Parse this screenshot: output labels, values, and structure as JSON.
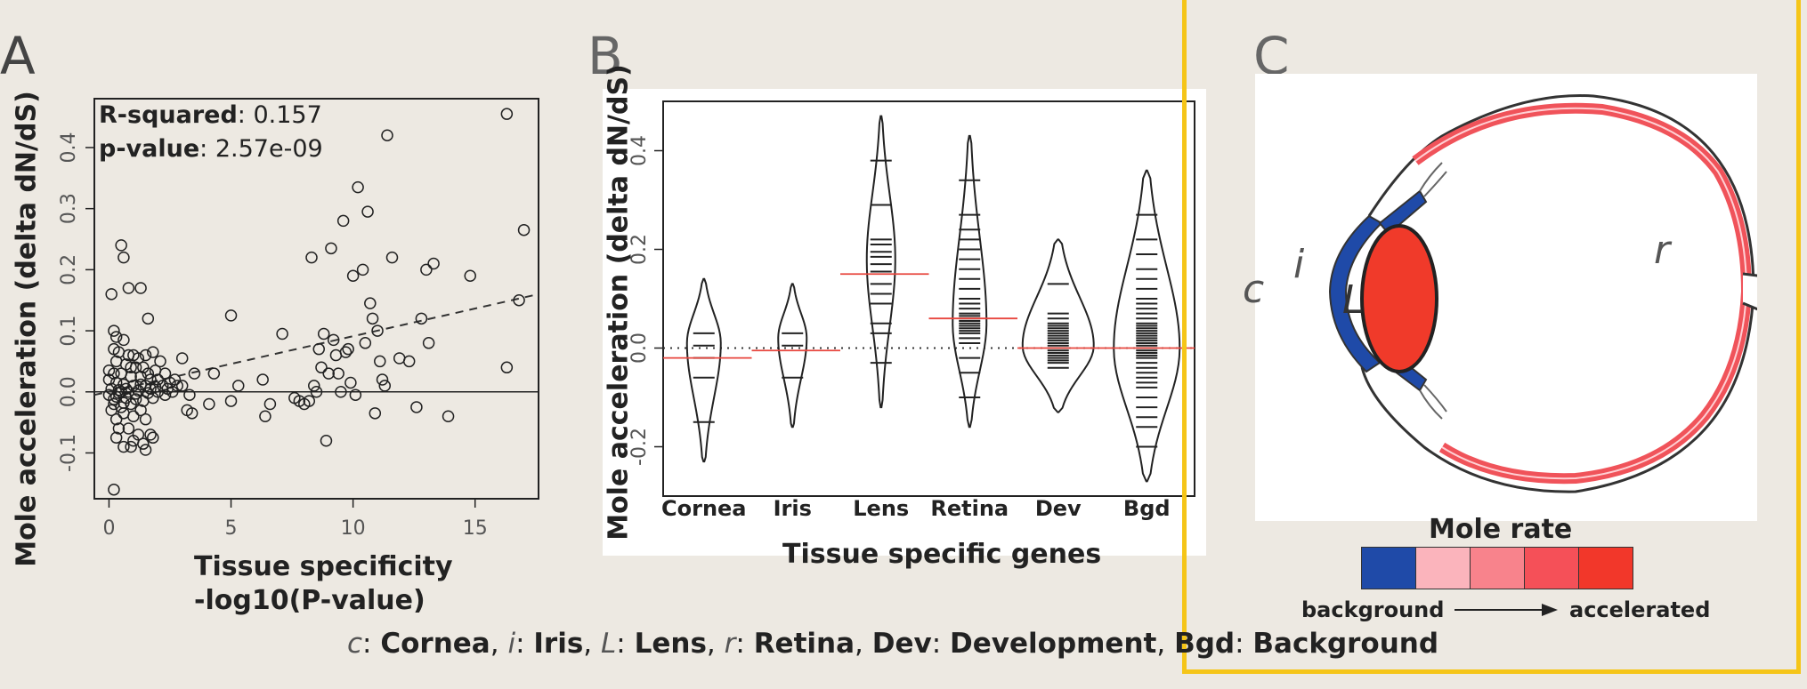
{
  "panels": {
    "a_letter": "A",
    "b_letter": "B",
    "c_letter": "C"
  },
  "chart_data": [
    {
      "type": "scatter",
      "panel": "A",
      "xlabel_line1": "Tissue specificity",
      "xlabel_line2": "-log10(P-value)",
      "ylabel": "Mole acceleration (delta dN/dS)",
      "xlim": [
        -0.6,
        17.6
      ],
      "ylim": [
        -0.175,
        0.48
      ],
      "x_ticks": [
        0,
        5,
        10,
        15
      ],
      "y_ticks": [
        -0.1,
        0.0,
        0.1,
        0.2,
        0.3,
        0.4
      ],
      "y_tick_labels": [
        "-0.1",
        "0.0",
        "0.1",
        "0.2",
        "0.3",
        "0.4"
      ],
      "stats": {
        "r2_label": "R-squared",
        "r2_value": "0.157",
        "p_label": "p-value",
        "p_value": "2.57e-09"
      },
      "reference_line_y": 0,
      "trend_line": {
        "x": [
          -0.6,
          17.6
        ],
        "y": [
          -0.005,
          0.16
        ],
        "style": "dashed"
      },
      "points": [
        [
          0.1,
          0.16
        ],
        [
          0.5,
          0.24
        ],
        [
          0.6,
          0.22
        ],
        [
          0.8,
          0.17
        ],
        [
          1.3,
          0.17
        ],
        [
          1.6,
          0.12
        ],
        [
          0.2,
          0.1
        ],
        [
          0.3,
          0.09
        ],
        [
          0.6,
          0.085
        ],
        [
          0.2,
          0.07
        ],
        [
          0.4,
          0.065
        ],
        [
          0.8,
          0.06
        ],
        [
          1.0,
          0.06
        ],
        [
          1.2,
          0.055
        ],
        [
          1.5,
          0.06
        ],
        [
          1.8,
          0.065
        ],
        [
          2.1,
          0.05
        ],
        [
          0.3,
          0.05
        ],
        [
          0.7,
          0.045
        ],
        [
          1.1,
          0.04
        ],
        [
          1.4,
          0.04
        ],
        [
          1.9,
          0.035
        ],
        [
          2.3,
          0.03
        ],
        [
          0.2,
          0.03
        ],
        [
          0.5,
          0.03
        ],
        [
          0.9,
          0.025
        ],
        [
          1.3,
          0.025
        ],
        [
          1.7,
          0.02
        ],
        [
          2.0,
          0.02
        ],
        [
          2.5,
          0.015
        ],
        [
          0.0,
          0.02
        ],
        [
          0.3,
          0.015
        ],
        [
          0.6,
          0.012
        ],
        [
          1.0,
          0.01
        ],
        [
          1.5,
          0.01
        ],
        [
          1.9,
          0.008
        ],
        [
          2.4,
          0.005
        ],
        [
          2.8,
          0.01
        ],
        [
          0.1,
          0.005
        ],
        [
          0.4,
          0.003
        ],
        [
          0.8,
          0.0
        ],
        [
          1.2,
          0.002
        ],
        [
          1.6,
          -0.002
        ],
        [
          2.0,
          0.0
        ],
        [
          2.3,
          -0.005
        ],
        [
          0.0,
          -0.005
        ],
        [
          0.3,
          -0.008
        ],
        [
          0.7,
          -0.01
        ],
        [
          1.1,
          -0.012
        ],
        [
          1.4,
          -0.015
        ],
        [
          1.8,
          -0.01
        ],
        [
          0.2,
          -0.02
        ],
        [
          0.5,
          -0.025
        ],
        [
          0.9,
          -0.02
        ],
        [
          1.3,
          -0.03
        ],
        [
          0.1,
          -0.03
        ],
        [
          0.6,
          -0.035
        ],
        [
          1.0,
          -0.04
        ],
        [
          0.3,
          -0.045
        ],
        [
          1.5,
          -0.045
        ],
        [
          0.4,
          -0.06
        ],
        [
          0.8,
          -0.06
        ],
        [
          1.2,
          -0.07
        ],
        [
          1.7,
          -0.07
        ],
        [
          0.3,
          -0.075
        ],
        [
          0.6,
          -0.09
        ],
        [
          1.0,
          -0.08
        ],
        [
          1.4,
          -0.085
        ],
        [
          1.5,
          -0.095
        ],
        [
          1.8,
          -0.075
        ],
        [
          0.2,
          -0.16
        ],
        [
          0.9,
          -0.09
        ],
        [
          0.5,
          0.0
        ],
        [
          1.7,
          0.005
        ],
        [
          2.6,
          0.0
        ],
        [
          3.0,
          0.01
        ],
        [
          3.3,
          -0.005
        ],
        [
          2.2,
          0.01
        ],
        [
          3.5,
          0.03
        ],
        [
          4.3,
          0.03
        ],
        [
          3.0,
          0.055
        ],
        [
          3.2,
          -0.03
        ],
        [
          3.4,
          -0.035
        ],
        [
          4.1,
          -0.02
        ],
        [
          5.0,
          0.125
        ],
        [
          5.0,
          -0.015
        ],
        [
          5.3,
          0.01
        ],
        [
          6.3,
          0.02
        ],
        [
          6.4,
          -0.04
        ],
        [
          6.6,
          -0.02
        ],
        [
          7.1,
          0.095
        ],
        [
          7.6,
          -0.01
        ],
        [
          7.8,
          -0.015
        ],
        [
          8.0,
          -0.02
        ],
        [
          8.2,
          -0.015
        ],
        [
          8.3,
          0.22
        ],
        [
          8.4,
          0.01
        ],
        [
          8.5,
          0.0
        ],
        [
          8.6,
          0.07
        ],
        [
          8.7,
          0.04
        ],
        [
          8.8,
          0.095
        ],
        [
          8.9,
          -0.08
        ],
        [
          9.0,
          0.03
        ],
        [
          9.1,
          0.235
        ],
        [
          9.2,
          0.085
        ],
        [
          9.3,
          0.06
        ],
        [
          9.4,
          0.03
        ],
        [
          9.5,
          0.0
        ],
        [
          9.6,
          0.28
        ],
        [
          9.7,
          0.065
        ],
        [
          9.8,
          0.07
        ],
        [
          9.9,
          0.015
        ],
        [
          10.0,
          0.19
        ],
        [
          10.1,
          -0.005
        ],
        [
          10.2,
          0.335
        ],
        [
          10.4,
          0.2
        ],
        [
          10.5,
          0.08
        ],
        [
          10.6,
          0.295
        ],
        [
          10.7,
          0.145
        ],
        [
          10.8,
          0.12
        ],
        [
          10.9,
          -0.035
        ],
        [
          11.0,
          0.1
        ],
        [
          11.1,
          0.05
        ],
        [
          11.2,
          0.02
        ],
        [
          11.3,
          0.01
        ],
        [
          11.4,
          0.42
        ],
        [
          11.6,
          0.22
        ],
        [
          11.9,
          0.055
        ],
        [
          12.6,
          -0.025
        ],
        [
          12.8,
          0.12
        ],
        [
          13.0,
          0.2
        ],
        [
          13.3,
          0.21
        ],
        [
          13.9,
          -0.04
        ],
        [
          14.8,
          0.19
        ],
        [
          13.1,
          0.08
        ],
        [
          16.3,
          0.455
        ],
        [
          16.3,
          0.04
        ],
        [
          16.8,
          0.15
        ],
        [
          17.0,
          0.265
        ],
        [
          12.3,
          0.05
        ],
        [
          0.0,
          0.035
        ],
        [
          0.4,
          -0.002
        ],
        [
          0.7,
          0.005
        ],
        [
          1.1,
          -0.003
        ],
        [
          1.3,
          0.012
        ],
        [
          0.9,
          0.04
        ],
        [
          0.2,
          -0.012
        ],
        [
          1.6,
          0.03
        ],
        [
          2.7,
          0.02
        ],
        [
          0.6,
          -0.018
        ]
      ]
    },
    {
      "type": "violin",
      "panel": "B",
      "xlabel": "Tissue specific genes",
      "ylabel": "Mole acceleration (delta dN/dS)",
      "ylim": [
        -0.3,
        0.5
      ],
      "y_ticks": [
        -0.2,
        0.0,
        0.2,
        0.4
      ],
      "y_tick_labels": [
        "-0.2",
        "0.0",
        "0.2",
        "0.4"
      ],
      "reference_line_y": 0,
      "categories": [
        "Cornea",
        "Iris",
        "Lens",
        "Retina",
        "Dev",
        "Bgd"
      ],
      "series": [
        {
          "min": -0.23,
          "max": 0.14,
          "mean": -0.02,
          "wmax": 19,
          "mode": 0.01,
          "values": [
            0.03,
            0.005,
            -0.02,
            -0.06,
            -0.15
          ]
        },
        {
          "min": -0.16,
          "max": 0.13,
          "mean": -0.005,
          "wmax": 16,
          "mode": 0.02,
          "values": [
            0.03,
            0.005,
            -0.06
          ]
        },
        {
          "min": -0.12,
          "max": 0.47,
          "mean": 0.15,
          "wmax": 16,
          "mode": 0.18,
          "values": [
            0.38,
            0.29,
            0.22,
            0.21,
            0.195,
            0.185,
            0.17,
            0.155,
            0.13,
            0.11,
            0.09,
            0.05,
            0.03,
            -0.03
          ]
        },
        {
          "min": -0.16,
          "max": 0.43,
          "mean": 0.06,
          "wmax": 19,
          "mode": 0.05,
          "values": [
            0.34,
            0.27,
            0.24,
            0.22,
            0.2,
            0.18,
            0.16,
            0.14,
            0.12,
            0.1,
            0.09,
            0.08,
            0.07,
            0.065,
            0.06,
            0.055,
            0.05,
            0.045,
            0.04,
            0.035,
            0.03,
            0.02,
            0.01,
            -0.02,
            -0.05,
            -0.1
          ]
        },
        {
          "min": -0.13,
          "max": 0.22,
          "mean": 0.0,
          "wmax": 40,
          "mode": 0.005,
          "values": [
            0.13,
            0.07,
            0.06,
            0.05,
            0.045,
            0.04,
            0.035,
            0.03,
            0.025,
            0.02,
            0.015,
            0.01,
            0.005,
            0.0,
            -0.005,
            -0.01,
            -0.015,
            -0.02,
            -0.025,
            -0.03,
            -0.04
          ]
        },
        {
          "min": -0.27,
          "max": 0.36,
          "mean": 0.0,
          "wmax": 37,
          "mode": 0.0,
          "values": [
            0.27,
            0.22,
            0.19,
            0.16,
            0.14,
            0.12,
            0.1,
            0.09,
            0.08,
            0.07,
            0.06,
            0.05,
            0.045,
            0.04,
            0.035,
            0.03,
            0.025,
            0.02,
            0.015,
            0.01,
            0.005,
            0.0,
            -0.005,
            -0.01,
            -0.015,
            -0.02,
            -0.03,
            -0.04,
            -0.05,
            -0.06,
            -0.07,
            -0.08,
            -0.1,
            -0.12,
            -0.14,
            -0.16,
            -0.2
          ]
        }
      ]
    }
  ],
  "eye": {
    "labels": {
      "cornea": "c",
      "iris": "i",
      "lens": "L",
      "retina": "r"
    },
    "colors": {
      "background": "#1f4aa8",
      "lens": "#f03a2a",
      "retina": "#f0535a"
    }
  },
  "legend": {
    "title": "Mole rate",
    "low_label": "background",
    "high_label": "accelerated",
    "colors": [
      "#1f4aa8",
      "#fbb4bc",
      "#f8838c",
      "#f55058",
      "#f2372a"
    ]
  },
  "caption": {
    "c_sym": "c",
    "c_name": "Cornea",
    "i_sym": "i",
    "i_name": "Iris",
    "l_sym": "L",
    "l_name": "Lens",
    "r_sym": "r",
    "r_name": "Retina",
    "dev_sym": "Dev",
    "dev_name": "Development",
    "bgd_sym": "Bgd",
    "bgd_name": "Background"
  }
}
